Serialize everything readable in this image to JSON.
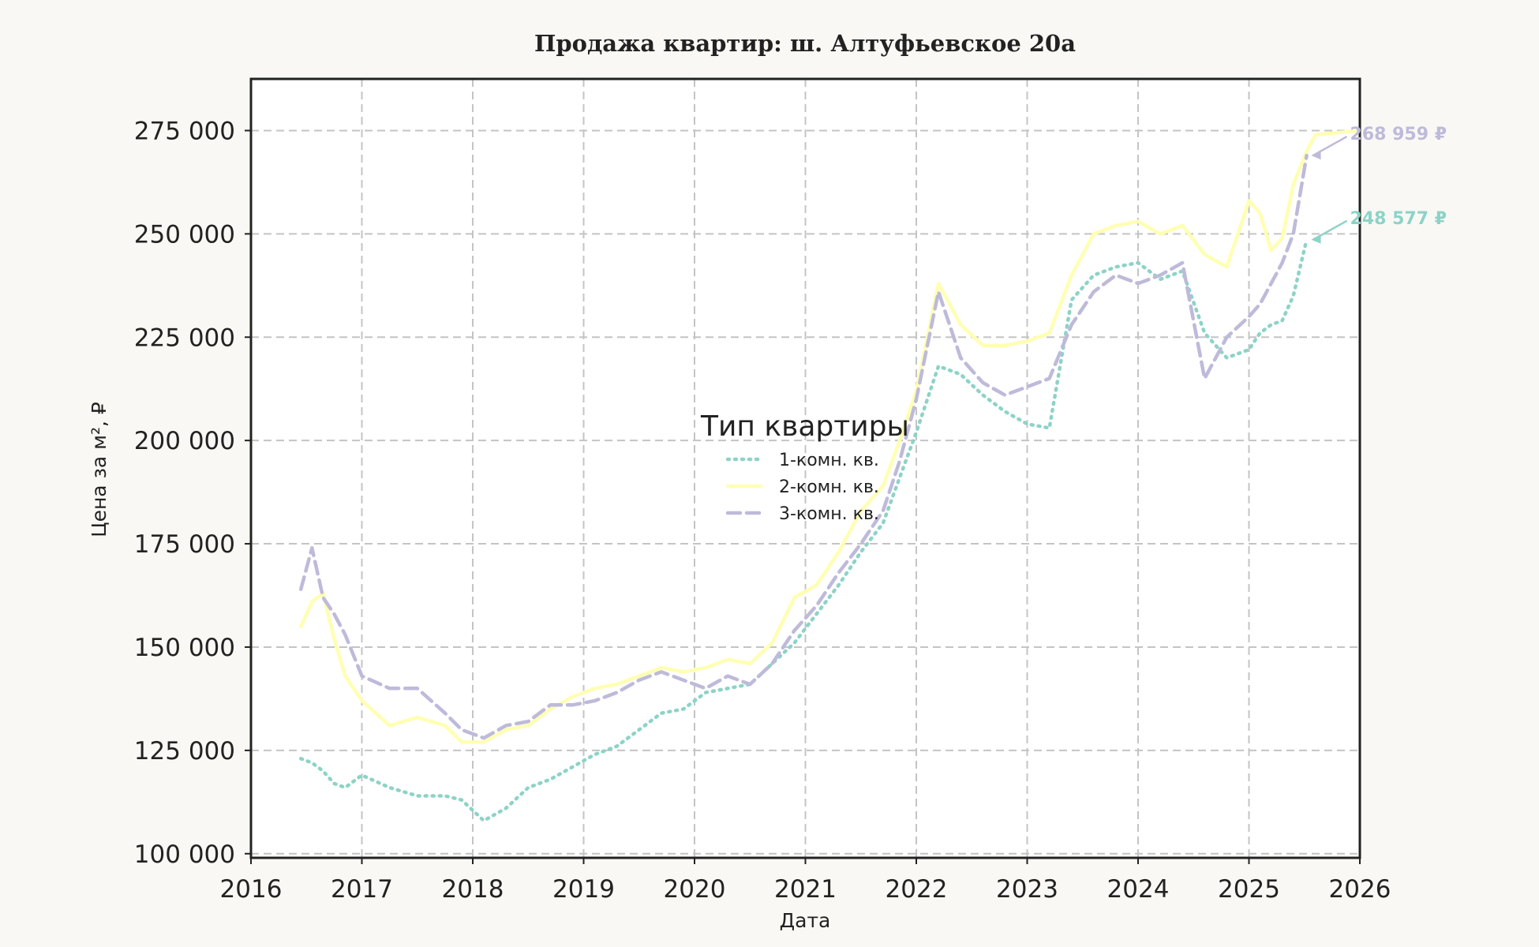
{
  "chart_data": {
    "type": "line",
    "title": "Продажа квартир: ш. Алтуфьевское 20а",
    "xlabel": "Дата",
    "ylabel": "Цена за м², ₽",
    "xlim": [
      2016.0,
      2026.0
    ],
    "ylim": [
      99000,
      287500
    ],
    "x_ticks": [
      2016,
      2017,
      2018,
      2019,
      2020,
      2021,
      2022,
      2023,
      2024,
      2025,
      2026
    ],
    "y_ticks": [
      100000,
      125000,
      150000,
      175000,
      200000,
      225000,
      250000,
      275000
    ],
    "y_tick_labels": [
      "100 000",
      "125 000",
      "150 000",
      "175 000",
      "200 000",
      "225 000",
      "250 000",
      "275 000"
    ],
    "grid": true,
    "legend": {
      "title": "Тип квартиры",
      "placement": "center"
    },
    "series": [
      {
        "name": "1-комн. кв.",
        "color": "#8dd3c7",
        "style": "dotted",
        "x": [
          2016.45,
          2016.55,
          2016.65,
          2016.75,
          2016.85,
          2017.0,
          2017.25,
          2017.5,
          2017.75,
          2017.9,
          2018.1,
          2018.3,
          2018.5,
          2018.7,
          2018.9,
          2019.1,
          2019.3,
          2019.5,
          2019.7,
          2019.9,
          2020.1,
          2020.3,
          2020.5,
          2020.7,
          2020.9,
          2021.1,
          2021.3,
          2021.5,
          2021.7,
          2021.85,
          2022.0,
          2022.2,
          2022.4,
          2022.6,
          2022.8,
          2023.0,
          2023.2,
          2023.4,
          2023.6,
          2023.8,
          2024.0,
          2024.2,
          2024.4,
          2024.6,
          2024.8,
          2025.0,
          2025.1,
          2025.2,
          2025.3,
          2025.4,
          2025.52
        ],
        "y": [
          123000,
          122000,
          120000,
          117000,
          116000,
          119000,
          116000,
          114000,
          114000,
          113000,
          108000,
          111000,
          116000,
          118000,
          121000,
          124000,
          126000,
          130000,
          134000,
          135000,
          139000,
          140000,
          141000,
          146000,
          151000,
          158000,
          165000,
          173000,
          180000,
          191000,
          202000,
          218000,
          216000,
          211000,
          207000,
          204000,
          203000,
          234000,
          240000,
          242000,
          243000,
          239000,
          241000,
          226000,
          220000,
          222000,
          226000,
          228000,
          229000,
          235000,
          248577
        ],
        "end_label": "248 577 ₽"
      },
      {
        "name": "2-комн. кв.",
        "color": "#ffffb3",
        "style": "solid",
        "x": [
          2016.45,
          2016.55,
          2016.65,
          2016.75,
          2016.85,
          2017.0,
          2017.25,
          2017.5,
          2017.75,
          2017.9,
          2018.1,
          2018.3,
          2018.5,
          2018.7,
          2018.9,
          2019.1,
          2019.3,
          2019.5,
          2019.7,
          2019.9,
          2020.1,
          2020.3,
          2020.5,
          2020.7,
          2020.9,
          2021.1,
          2021.3,
          2021.5,
          2021.7,
          2021.85,
          2022.0,
          2022.2,
          2022.4,
          2022.6,
          2022.8,
          2023.0,
          2023.2,
          2023.4,
          2023.6,
          2023.8,
          2024.0,
          2024.2,
          2024.4,
          2024.6,
          2024.8,
          2025.0,
          2025.1,
          2025.2,
          2025.3,
          2025.4,
          2025.52,
          2025.6,
          2026.0
        ],
        "y": [
          155000,
          161000,
          163000,
          152000,
          143000,
          137000,
          131000,
          133000,
          131000,
          127000,
          127000,
          130000,
          131000,
          135000,
          138000,
          140000,
          141000,
          143000,
          145000,
          144000,
          145000,
          147000,
          146000,
          151000,
          162000,
          165000,
          173000,
          183000,
          189000,
          200000,
          212000,
          238000,
          228000,
          223000,
          223000,
          224000,
          226000,
          240000,
          250000,
          252000,
          253000,
          250000,
          252000,
          245000,
          242000,
          258000,
          255000,
          246000,
          249000,
          262000,
          270000,
          274000,
          275000
        ]
      },
      {
        "name": "3-комн. кв.",
        "color": "#bebada",
        "style": "dashed",
        "x": [
          2016.45,
          2016.55,
          2016.65,
          2016.75,
          2016.85,
          2017.0,
          2017.25,
          2017.5,
          2017.75,
          2017.9,
          2018.1,
          2018.3,
          2018.5,
          2018.7,
          2018.9,
          2019.1,
          2019.3,
          2019.5,
          2019.7,
          2019.9,
          2020.1,
          2020.3,
          2020.5,
          2020.7,
          2020.9,
          2021.1,
          2021.3,
          2021.5,
          2021.7,
          2021.85,
          2022.0,
          2022.2,
          2022.4,
          2022.6,
          2022.8,
          2023.0,
          2023.2,
          2023.4,
          2023.6,
          2023.8,
          2024.0,
          2024.2,
          2024.4,
          2024.6,
          2024.8,
          2025.0,
          2025.1,
          2025.2,
          2025.3,
          2025.4,
          2025.52
        ],
        "y": [
          164000,
          174000,
          162000,
          158000,
          153000,
          143000,
          140000,
          140000,
          134000,
          130000,
          128000,
          131000,
          132000,
          136000,
          136000,
          137000,
          139000,
          142000,
          144000,
          142000,
          140000,
          143000,
          141000,
          146000,
          154000,
          160000,
          168000,
          175000,
          183000,
          195000,
          210000,
          236000,
          220000,
          214000,
          211000,
          213000,
          215000,
          228000,
          236000,
          240000,
          238000,
          240000,
          243000,
          215000,
          225000,
          230000,
          233000,
          238000,
          243000,
          250000,
          268959
        ],
        "end_label": "268 959 ₽"
      }
    ]
  }
}
